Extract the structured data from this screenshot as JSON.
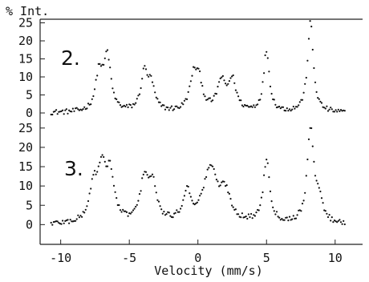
{
  "chart_data": {
    "type": "scatter",
    "ylabel": "% Int.",
    "xlabel": "Velocity (mm/s)",
    "xlim": [
      -11.5,
      12
    ],
    "x_ticks": [
      -10,
      -5,
      0,
      5,
      10
    ],
    "grid": false,
    "panels": [
      {
        "label": "2.",
        "ylim": [
          -2,
          26
        ],
        "y_ticks": [
          0,
          5,
          10,
          15,
          20,
          25
        ],
        "peaks": [
          {
            "x": -7.2,
            "height": 10.5,
            "width": 0.3
          },
          {
            "x": -6.6,
            "height": 15.0,
            "width": 0.3
          },
          {
            "x": -3.9,
            "height": 10.5,
            "width": 0.3
          },
          {
            "x": -3.4,
            "height": 6.5,
            "width": 0.3
          },
          {
            "x": -0.3,
            "height": 9.5,
            "width": 0.35
          },
          {
            "x": 0.1,
            "height": 6.5,
            "width": 0.3
          },
          {
            "x": 1.7,
            "height": 8.0,
            "width": 0.35
          },
          {
            "x": 2.5,
            "height": 8.5,
            "width": 0.35
          },
          {
            "x": 5.0,
            "height": 17.0,
            "width": 0.25
          },
          {
            "x": 8.2,
            "height": 25.0,
            "width": 0.25
          }
        ]
      },
      {
        "label": "3.",
        "ylim": [
          -2,
          26
        ],
        "y_ticks": [
          0,
          5,
          10,
          15,
          20,
          25
        ],
        "peaks": [
          {
            "x": -7.6,
            "height": 9.0,
            "width": 0.35
          },
          {
            "x": -7.0,
            "height": 12.0,
            "width": 0.35
          },
          {
            "x": -6.4,
            "height": 12.0,
            "width": 0.35
          },
          {
            "x": -3.9,
            "height": 11.0,
            "width": 0.35
          },
          {
            "x": -3.3,
            "height": 9.0,
            "width": 0.35
          },
          {
            "x": -0.8,
            "height": 7.5,
            "width": 0.35
          },
          {
            "x": 0.9,
            "height": 14.0,
            "width": 0.6
          },
          {
            "x": 2.0,
            "height": 7.0,
            "width": 0.45
          },
          {
            "x": 5.0,
            "height": 16.5,
            "width": 0.28
          },
          {
            "x": 8.2,
            "height": 24.0,
            "width": 0.28
          },
          {
            "x": 8.8,
            "height": 6.0,
            "width": 0.3
          }
        ]
      }
    ],
    "noise_amplitude": 0.7
  }
}
